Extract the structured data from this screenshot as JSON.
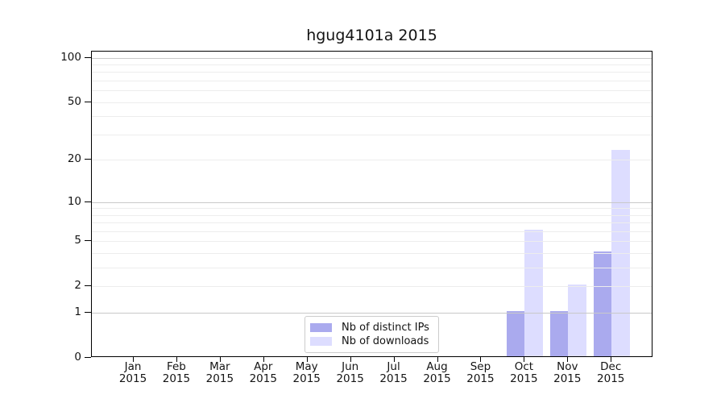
{
  "chart_data": {
    "type": "bar",
    "title": "hgug4101a 2015",
    "xlabel": "",
    "ylabel": "",
    "month_labels": [
      "Jan",
      "Feb",
      "Mar",
      "Apr",
      "May",
      "Jun",
      "Jul",
      "Aug",
      "Sep",
      "Oct",
      "Nov",
      "Dec"
    ],
    "year_label": "2015",
    "categories": [
      "Jan 2015",
      "Feb 2015",
      "Mar 2015",
      "Apr 2015",
      "May 2015",
      "Jun 2015",
      "Jul 2015",
      "Aug 2015",
      "Sep 2015",
      "Oct 2015",
      "Nov 2015",
      "Dec 2015"
    ],
    "series": [
      {
        "name": "Nb of distinct IPs",
        "color": "#aaaaee",
        "values": [
          0,
          0,
          0,
          0,
          0,
          0,
          0,
          0,
          0,
          1,
          1,
          4
        ]
      },
      {
        "name": "Nb of downloads",
        "color": "#ddddff",
        "values": [
          0,
          0,
          0,
          0,
          0,
          0,
          0,
          0,
          0,
          6,
          2,
          23
        ]
      }
    ],
    "y_scale": "log1p",
    "ylim": [
      0,
      110
    ],
    "y_ticks": [
      0,
      1,
      2,
      5,
      10,
      20,
      50,
      100
    ],
    "y_grid_decade": [
      1,
      10,
      100
    ],
    "y_grid_sub": [
      2,
      3,
      4,
      5,
      6,
      7,
      8,
      9,
      20,
      30,
      40,
      50,
      60,
      70,
      80,
      90
    ],
    "grid": "horizontal",
    "legend": {
      "position": "inside-bottom-center",
      "items": [
        {
          "label": "Nb of distinct IPs",
          "color": "#aaaaee"
        },
        {
          "label": "Nb of downloads",
          "color": "#ddddff"
        }
      ]
    },
    "colors": {
      "grid_decade": "#c9c9c9",
      "grid_sub": "#ededed",
      "spine": "#000000",
      "text": "#141414",
      "legend_border": "#cccccc"
    }
  }
}
